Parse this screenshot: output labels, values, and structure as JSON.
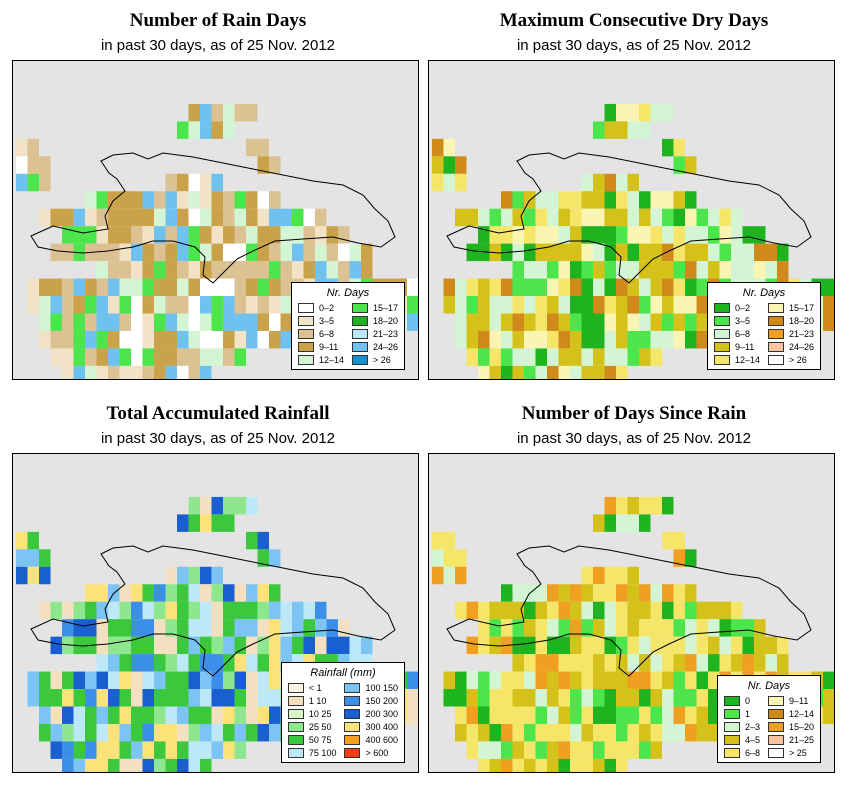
{
  "panels": [
    {
      "id": "rain-days",
      "title": "Number of Rain Days",
      "subtitle": "in past 30 days, as of  25 Nov. 2012",
      "legend_title": "Nr. Days",
      "legend": [
        {
          "label": "0–2",
          "color": "#ffffff"
        },
        {
          "label": "3–5",
          "color": "#f2e3c6"
        },
        {
          "label": "6–8",
          "color": "#dcc293"
        },
        {
          "label": "9–11",
          "color": "#c9a24a"
        },
        {
          "label": "12–14",
          "color": "#d4f5d4"
        },
        {
          "label": "15–17",
          "color": "#4ce64c"
        },
        {
          "label": "18–20",
          "color": "#1fb31f"
        },
        {
          "label": "21–23",
          "color": "#bce8f5"
        },
        {
          "label": "24–26",
          "color": "#6fc2ef"
        },
        {
          "label": "> 26",
          "color": "#1a8fd0"
        }
      ]
    },
    {
      "id": "dry-days",
      "title": "Maximum Consecutive Dry Days",
      "subtitle": "in past 30 days, as of  25 Nov. 2012",
      "legend_title": "Nr. Days",
      "legend": [
        {
          "label": "0–2",
          "color": "#1fb31f"
        },
        {
          "label": "3–5",
          "color": "#4ce64c"
        },
        {
          "label": "6–8",
          "color": "#d4f5d4"
        },
        {
          "label": "9–11",
          "color": "#d4c21a"
        },
        {
          "label": "12–14",
          "color": "#f5e66a"
        },
        {
          "label": "15–17",
          "color": "#fbf5b3"
        },
        {
          "label": "18–20",
          "color": "#d08a1a"
        },
        {
          "label": "21–23",
          "color": "#f0a020"
        },
        {
          "label": "24–26",
          "color": "#f8c4a0"
        },
        {
          "label": "> 26",
          "color": "#ffffff"
        }
      ]
    },
    {
      "id": "rainfall",
      "title": "Total Accumulated Rainfall",
      "subtitle": "in past 30 days, as of  25 Nov. 2012",
      "legend_title": "Rainfall (mm)",
      "legend": [
        {
          "label": "< 1",
          "color": "#fdf4e3"
        },
        {
          "label": "1     10",
          "color": "#f2e0c0"
        },
        {
          "label": "10    25",
          "color": "#d8f5c8"
        },
        {
          "label": "25    50",
          "color": "#8ee68e"
        },
        {
          "label": "50    75",
          "color": "#3cc83c"
        },
        {
          "label": "75   100",
          "color": "#bde8f8"
        },
        {
          "label": "100  150",
          "color": "#7cc4f4"
        },
        {
          "label": "150  200",
          "color": "#3c8fe8"
        },
        {
          "label": "200  300",
          "color": "#1a5fd0"
        },
        {
          "label": "300  400",
          "color": "#fbe37a"
        },
        {
          "label": "400  600",
          "color": "#f5a020"
        },
        {
          "label": "> 600",
          "color": "#f53c14"
        }
      ]
    },
    {
      "id": "since-rain",
      "title": "Number of Days Since Rain",
      "subtitle": "in past 30 days, as of  25 Nov. 2012",
      "legend_title": "Nr. Days",
      "legend": [
        {
          "label": "0",
          "color": "#1fb31f"
        },
        {
          "label": "1",
          "color": "#4ce64c"
        },
        {
          "label": "2–3",
          "color": "#d4f5d4"
        },
        {
          "label": "4–5",
          "color": "#d4c21a"
        },
        {
          "label": "6–8",
          "color": "#f5e66a"
        },
        {
          "label": "9–11",
          "color": "#fbf5b3"
        },
        {
          "label": "12–14",
          "color": "#d08a1a"
        },
        {
          "label": "15–20",
          "color": "#f0a020"
        },
        {
          "label": "21–25",
          "color": "#f8c4a0"
        },
        {
          "label": "> 25",
          "color": "#ffffff"
        }
      ]
    }
  ]
}
